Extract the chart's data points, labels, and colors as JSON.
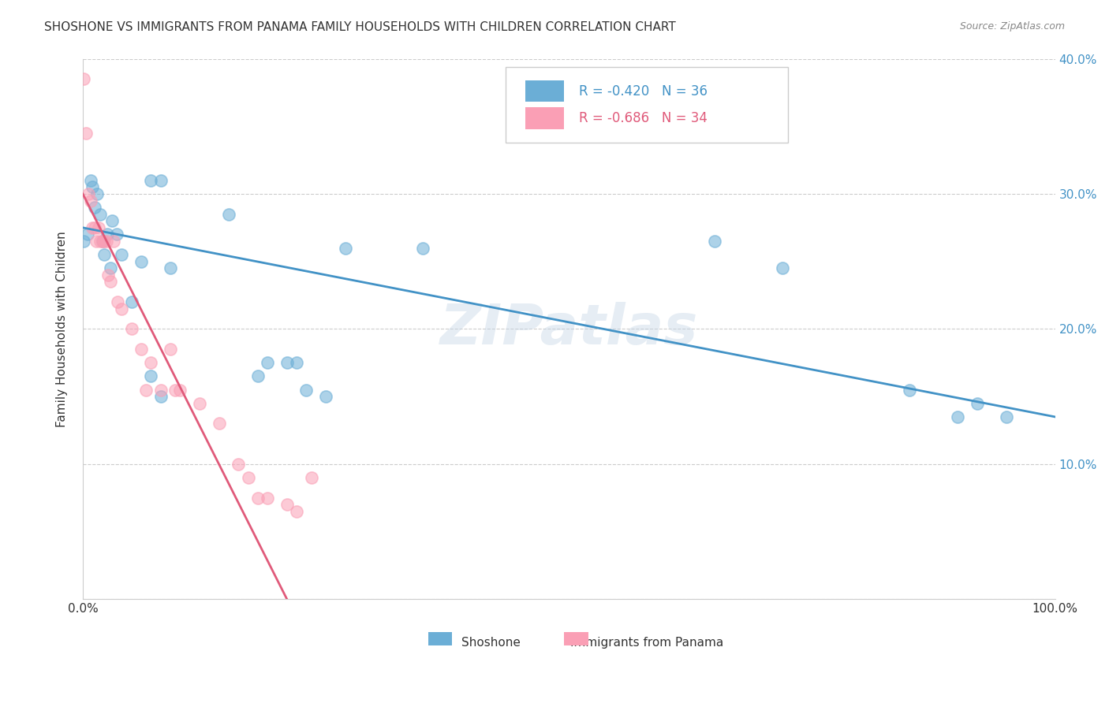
{
  "title": "SHOSHONE VS IMMIGRANTS FROM PANAMA FAMILY HOUSEHOLDS WITH CHILDREN CORRELATION CHART",
  "source": "Source: ZipAtlas.com",
  "ylabel": "Family Households with Children",
  "xlabel": "",
  "xlim": [
    0,
    1.0
  ],
  "ylim": [
    0,
    0.4
  ],
  "xticks": [
    0.0,
    0.1,
    0.2,
    0.3,
    0.4,
    0.5,
    0.6,
    0.7,
    0.8,
    0.9,
    1.0
  ],
  "yticks": [
    0.0,
    0.1,
    0.2,
    0.3,
    0.4
  ],
  "xtick_labels": [
    "0.0%",
    "",
    "",
    "",
    "",
    "",
    "",
    "",
    "",
    "",
    "100.0%"
  ],
  "ytick_labels_left": [
    "",
    "",
    "",
    "",
    ""
  ],
  "ytick_labels_right": [
    "",
    "10.0%",
    "20.0%",
    "30.0%",
    "40.0%"
  ],
  "legend_r1": "R = -0.420",
  "legend_n1": "N = 36",
  "legend_r2": "R = -0.686",
  "legend_n2": "N = 34",
  "blue_color": "#6baed6",
  "pink_color": "#fa9fb5",
  "blue_line_color": "#4292c6",
  "pink_line_color": "#e05a7a",
  "watermark": "ZIPatlas",
  "shoshone_x": [
    0.001,
    0.005,
    0.008,
    0.01,
    0.012,
    0.015,
    0.018,
    0.02,
    0.022,
    0.025,
    0.028,
    0.03,
    0.035,
    0.04,
    0.05,
    0.06,
    0.07,
    0.08,
    0.09,
    0.15,
    0.18,
    0.19,
    0.21,
    0.22,
    0.23,
    0.35,
    0.65,
    0.72,
    0.85,
    0.9,
    0.92,
    0.95,
    0.07,
    0.08,
    0.25,
    0.27
  ],
  "shoshone_y": [
    0.265,
    0.27,
    0.31,
    0.305,
    0.29,
    0.3,
    0.285,
    0.265,
    0.255,
    0.27,
    0.245,
    0.28,
    0.27,
    0.255,
    0.22,
    0.25,
    0.165,
    0.15,
    0.245,
    0.285,
    0.165,
    0.175,
    0.175,
    0.175,
    0.155,
    0.26,
    0.265,
    0.245,
    0.155,
    0.135,
    0.145,
    0.135,
    0.31,
    0.31,
    0.15,
    0.26
  ],
  "panama_x": [
    0.001,
    0.003,
    0.006,
    0.008,
    0.01,
    0.012,
    0.014,
    0.016,
    0.018,
    0.02,
    0.022,
    0.024,
    0.026,
    0.028,
    0.032,
    0.036,
    0.04,
    0.05,
    0.06,
    0.065,
    0.07,
    0.08,
    0.09,
    0.095,
    0.1,
    0.12,
    0.14,
    0.16,
    0.17,
    0.18,
    0.19,
    0.21,
    0.22,
    0.235
  ],
  "panama_y": [
    0.385,
    0.345,
    0.3,
    0.295,
    0.275,
    0.275,
    0.265,
    0.275,
    0.265,
    0.265,
    0.265,
    0.265,
    0.24,
    0.235,
    0.265,
    0.22,
    0.215,
    0.2,
    0.185,
    0.155,
    0.175,
    0.155,
    0.185,
    0.155,
    0.155,
    0.145,
    0.13,
    0.1,
    0.09,
    0.075,
    0.075,
    0.07,
    0.065,
    0.09
  ],
  "blue_trend_x": [
    0.0,
    1.0
  ],
  "blue_trend_y": [
    0.275,
    0.135
  ],
  "pink_trend_x": [
    0.0,
    0.21
  ],
  "pink_trend_y": [
    0.3,
    0.0
  ]
}
